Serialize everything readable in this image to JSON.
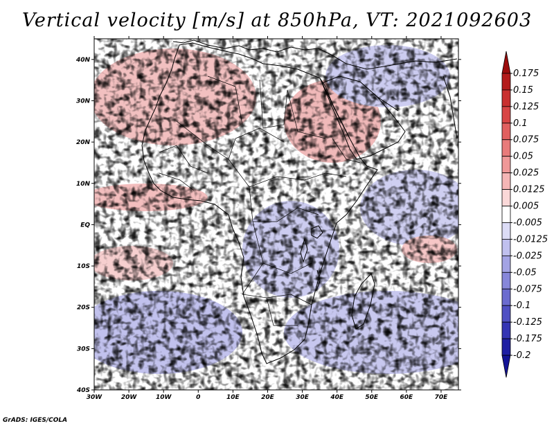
{
  "title": "Vertical velocity [m/s] at 850hPa, VT: 2021092603",
  "credit": "GrADS: IGES/COLA",
  "map": {
    "lat_labels": [
      "40N",
      "30N",
      "20N",
      "10N",
      "EQ",
      "10S",
      "20S",
      "30S",
      "40S"
    ],
    "lat_values": [
      40,
      30,
      20,
      10,
      0,
      -10,
      -20,
      -30,
      -40
    ],
    "lon_labels": [
      "30W",
      "20W",
      "10W",
      "0",
      "10E",
      "20E",
      "30E",
      "40E",
      "50E",
      "60E",
      "70E"
    ],
    "lon_values": [
      -30,
      -20,
      -10,
      0,
      10,
      20,
      30,
      40,
      50,
      60,
      70
    ],
    "lon_range": [
      -30,
      75
    ],
    "lat_range": [
      -40,
      45
    ]
  },
  "colorbar": {
    "labels": [
      "0.175",
      "0.15",
      "0.125",
      "0.1",
      "0.075",
      "0.05",
      "0.025",
      "0.0125",
      "0.005",
      "-0.005",
      "-0.0125",
      "-0.025",
      "-0.05",
      "-0.075",
      "-0.1",
      "-0.125",
      "-0.175",
      "-0.2"
    ],
    "colors": [
      "#9b0d0d",
      "#b41b1b",
      "#c93030",
      "#d84545",
      "#e16060",
      "#e87b7b",
      "#ef9898",
      "#f5b6b6",
      "#fad8d8",
      "#ffffff",
      "#dcdcf6",
      "#c0c0ee",
      "#a3a3e4",
      "#8787da",
      "#6b6bcf",
      "#5050c3",
      "#3535b4",
      "#1f1fa3",
      "#141496"
    ]
  },
  "colors": {
    "positive": "#d84545",
    "negative": "#5050c3",
    "coastline": "#000000"
  }
}
